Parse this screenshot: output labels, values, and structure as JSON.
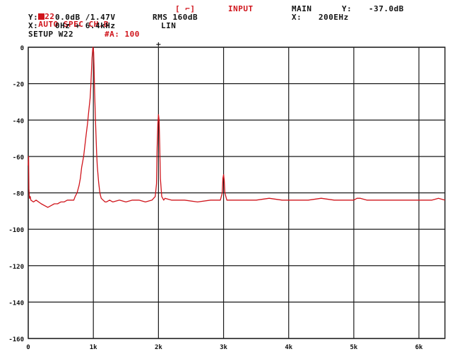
{
  "header": {
    "marker_glyph": "▮",
    "line1": {
      "code": "22",
      "mode": "AUTO SPEC CH.B",
      "bracket": "[ ⌐]",
      "source": "INPUT",
      "main_label": "MAIN",
      "y_label": "Y:",
      "y_value": "-37.0dB"
    },
    "line2": {
      "label": "Y:",
      "ref": "0.0dB /1.47V",
      "rms": "RMS 160dB",
      "x_label": "X:",
      "x_value": "200EHz"
    },
    "line3": {
      "label": "X:",
      "range": "0Hz + 6.4kHz",
      "scale": "LIN"
    },
    "line4": {
      "setup": "SETUP W22",
      "avg": "#A: 100"
    }
  },
  "colors": {
    "trace": "#d0141b",
    "grid": "#1a1a1a",
    "text": "#111111"
  },
  "chart_data": {
    "type": "line",
    "title": "",
    "xlabel": "",
    "ylabel": "",
    "xlim": [
      0,
      6400
    ],
    "ylim": [
      -160,
      0
    ],
    "x_ticks": [
      0,
      1000,
      2000,
      3000,
      4000,
      5000,
      6000
    ],
    "x_tick_labels": [
      "0",
      "1k",
      "2k",
      "3k",
      "4k",
      "5k",
      "6k"
    ],
    "y_ticks": [
      0,
      -20,
      -40,
      -60,
      -80,
      -100,
      -120,
      -140,
      -160
    ],
    "y_tick_labels": [
      "0",
      "-20",
      "-40",
      "-60",
      "-80",
      "-100",
      "-120",
      "-140",
      "-160"
    ],
    "grid": true,
    "cursor_x": 2000,
    "series": [
      {
        "x": [
          0,
          5,
          10,
          20,
          30,
          40,
          80,
          120,
          200,
          300,
          350,
          400,
          450,
          500,
          550,
          600,
          650,
          700,
          720,
          750,
          780,
          800,
          820,
          850,
          870,
          890,
          910,
          930,
          950,
          960,
          970,
          980,
          990,
          995,
          1000,
          1005,
          1010,
          1020,
          1030,
          1040,
          1050,
          1060,
          1080,
          1100,
          1120,
          1150,
          1180,
          1200,
          1250,
          1300,
          1400,
          1500,
          1600,
          1700,
          1800,
          1900,
          1950,
          1970,
          1980,
          1990,
          2000,
          2010,
          2020,
          2030,
          2050,
          2080,
          2100,
          2200,
          2400,
          2600,
          2800,
          2950,
          2980,
          2990,
          3000,
          3010,
          3020,
          3050,
          3100,
          3300,
          3500,
          3700,
          3900,
          4100,
          4300,
          4500,
          4700,
          4900,
          5000,
          5050,
          5100,
          5200,
          5400,
          5600,
          5800,
          6000,
          6200,
          6300,
          6400
        ],
        "y": [
          -65,
          -60,
          -78,
          -83,
          -82,
          -84,
          -85,
          -84,
          -86,
          -88,
          -87,
          -86,
          -86,
          -85,
          -85,
          -84,
          -84,
          -84,
          -82,
          -80,
          -76,
          -72,
          -66,
          -60,
          -54,
          -48,
          -42,
          -35,
          -28,
          -22,
          -14,
          -6,
          -1,
          0,
          -1,
          -3,
          -10,
          -25,
          -38,
          -48,
          -58,
          -65,
          -74,
          -80,
          -83,
          -84,
          -85,
          -85,
          -84,
          -85,
          -84,
          -85,
          -84,
          -84,
          -85,
          -84,
          -82,
          -75,
          -55,
          -42,
          -37,
          -40,
          -55,
          -72,
          -82,
          -84,
          -83,
          -84,
          -84,
          -85,
          -84,
          -84,
          -80,
          -72,
          -70,
          -73,
          -80,
          -84,
          -84,
          -84,
          -84,
          -83,
          -84,
          -84,
          -84,
          -83,
          -84,
          -84,
          -84,
          -83,
          -83,
          -84,
          -84,
          -84,
          -84,
          -84,
          -84,
          -83,
          -84
        ]
      }
    ]
  }
}
